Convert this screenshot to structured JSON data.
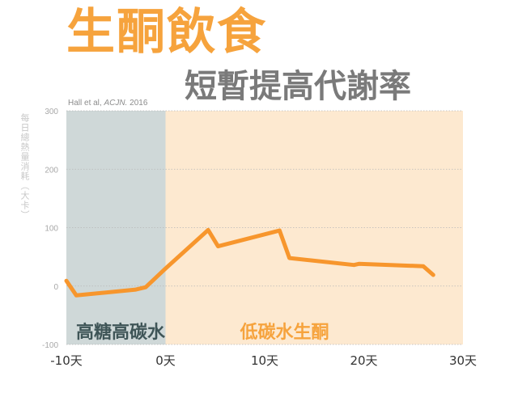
{
  "title": "生酮飲食",
  "subtitle": "短暫提高代謝率",
  "source": {
    "authors": "Hall et al, ",
    "journal": "ACJN.",
    "year": " 2016"
  },
  "colors": {
    "title": "#f6a33d",
    "line": "#f7962d",
    "high_carb_region": "#cfd8d8",
    "low_carb_region": "#fde9d0",
    "high_carb_label": "#3f5557",
    "low_carb_label": "#f6a33d"
  },
  "chart_data": {
    "type": "line",
    "ylabel": "每日總熱量消耗（大卡）",
    "xlim": [
      -10,
      30
    ],
    "ylim": [
      -100,
      300
    ],
    "x_tick_labels": [
      "-10天",
      "0天",
      "10天",
      "20天",
      "30天"
    ],
    "y_tick_labels": [
      "-100",
      "0",
      "100",
      "200",
      "300"
    ],
    "grid": "horizontal dotted",
    "regions": [
      {
        "label": "高糖高碳水",
        "x": [
          -10,
          0
        ]
      },
      {
        "label": "低碳水生酮",
        "x": [
          0,
          30
        ]
      }
    ],
    "series": [
      {
        "x": [
          -10,
          -9,
          -3,
          -2,
          0,
          4.3,
          5.3,
          11.5,
          12.5,
          19,
          19.5,
          26,
          27
        ],
        "y": [
          9,
          -16,
          -6,
          -2,
          30,
          96,
          68,
          95,
          48,
          36,
          38,
          34,
          19
        ]
      }
    ]
  }
}
